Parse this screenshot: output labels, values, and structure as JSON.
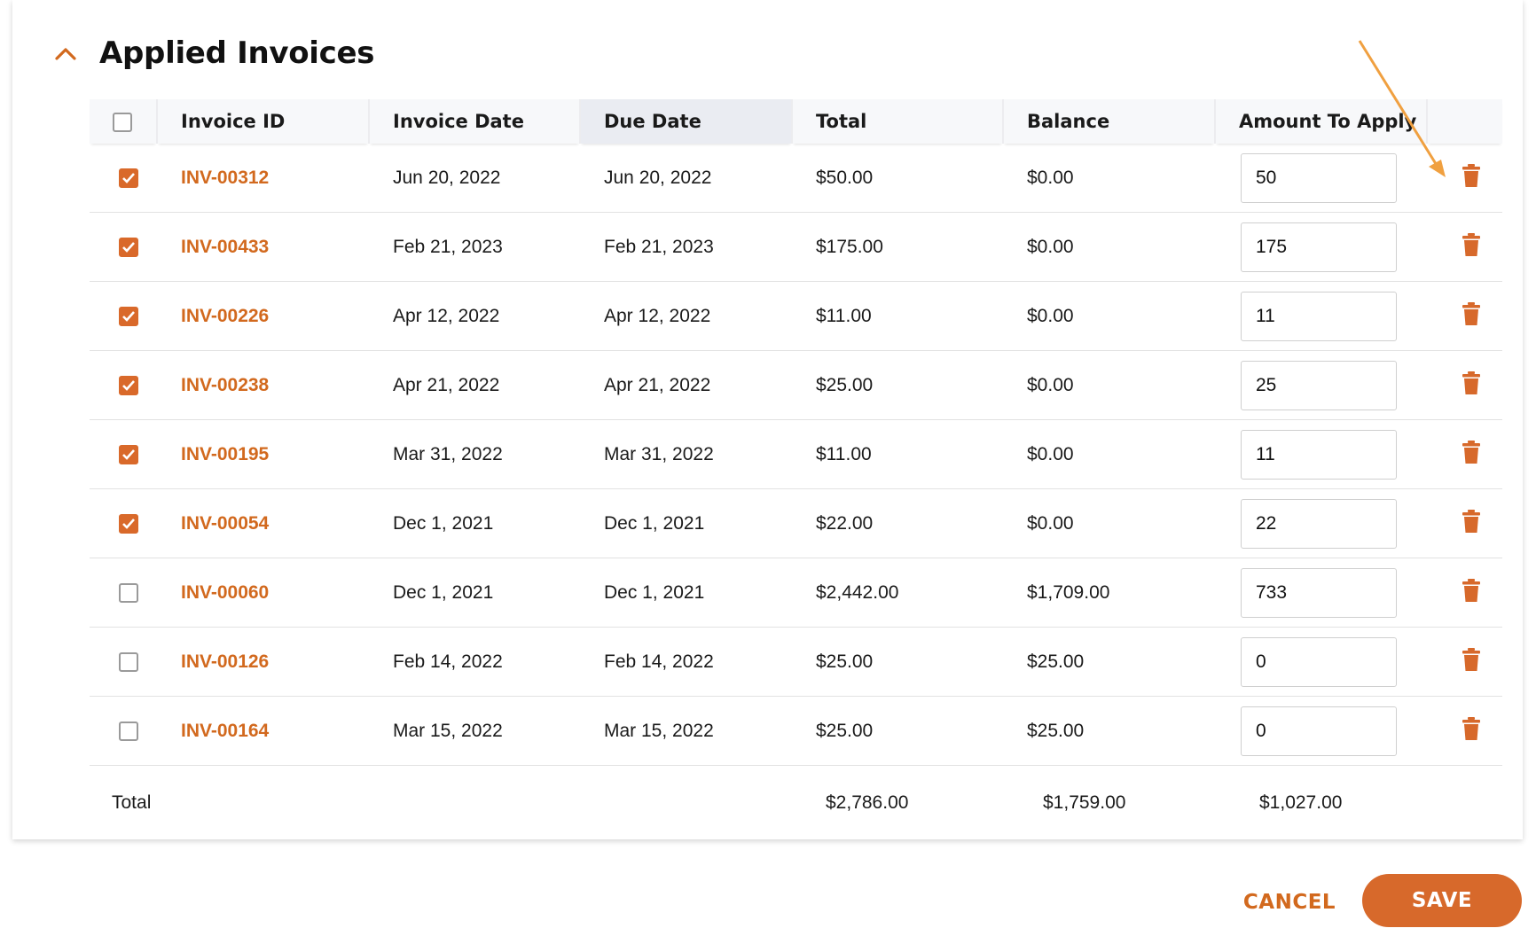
{
  "section": {
    "title": "Applied Invoices",
    "collapse_icon": "chevron-up-icon"
  },
  "table": {
    "columns": [
      "Invoice ID",
      "Invoice Date",
      "Due Date",
      "Total",
      "Balance",
      "Amount To Apply"
    ],
    "sorted_column": "Due Date",
    "select_all_checked": false,
    "rows": [
      {
        "checked": true,
        "id": "INV-00312",
        "invoice_date": "Jun 20, 2022",
        "due_date": "Jun 20, 2022",
        "total": "$50.00",
        "balance": "$0.00",
        "amount": "50"
      },
      {
        "checked": true,
        "id": "INV-00433",
        "invoice_date": "Feb 21, 2023",
        "due_date": "Feb 21, 2023",
        "total": "$175.00",
        "balance": "$0.00",
        "amount": "175"
      },
      {
        "checked": true,
        "id": "INV-00226",
        "invoice_date": "Apr 12, 2022",
        "due_date": "Apr 12, 2022",
        "total": "$11.00",
        "balance": "$0.00",
        "amount": "11"
      },
      {
        "checked": true,
        "id": "INV-00238",
        "invoice_date": "Apr 21, 2022",
        "due_date": "Apr 21, 2022",
        "total": "$25.00",
        "balance": "$0.00",
        "amount": "25"
      },
      {
        "checked": true,
        "id": "INV-00195",
        "invoice_date": "Mar 31, 2022",
        "due_date": "Mar 31, 2022",
        "total": "$11.00",
        "balance": "$0.00",
        "amount": "11"
      },
      {
        "checked": true,
        "id": "INV-00054",
        "invoice_date": "Dec 1, 2021",
        "due_date": "Dec 1, 2021",
        "total": "$22.00",
        "balance": "$0.00",
        "amount": "22"
      },
      {
        "checked": false,
        "id": "INV-00060",
        "invoice_date": "Dec 1, 2021",
        "due_date": "Dec 1, 2021",
        "total": "$2,442.00",
        "balance": "$1,709.00",
        "amount": "733"
      },
      {
        "checked": false,
        "id": "INV-00126",
        "invoice_date": "Feb 14, 2022",
        "due_date": "Feb 14, 2022",
        "total": "$25.00",
        "balance": "$25.00",
        "amount": "0"
      },
      {
        "checked": false,
        "id": "INV-00164",
        "invoice_date": "Mar 15, 2022",
        "due_date": "Mar 15, 2022",
        "total": "$25.00",
        "balance": "$25.00",
        "amount": "0"
      }
    ],
    "row_action_icon": "trash-icon"
  },
  "totals": {
    "label": "Total",
    "total": "$2,786.00",
    "balance": "$1,759.00",
    "amount_to_apply": "$1,027.00"
  },
  "actions": {
    "cancel_label": "CANCEL",
    "save_label": "SAVE"
  },
  "colors": {
    "accent": "#d7692b",
    "link": "#d2691e",
    "annotation_arrow": "#f0a040"
  }
}
